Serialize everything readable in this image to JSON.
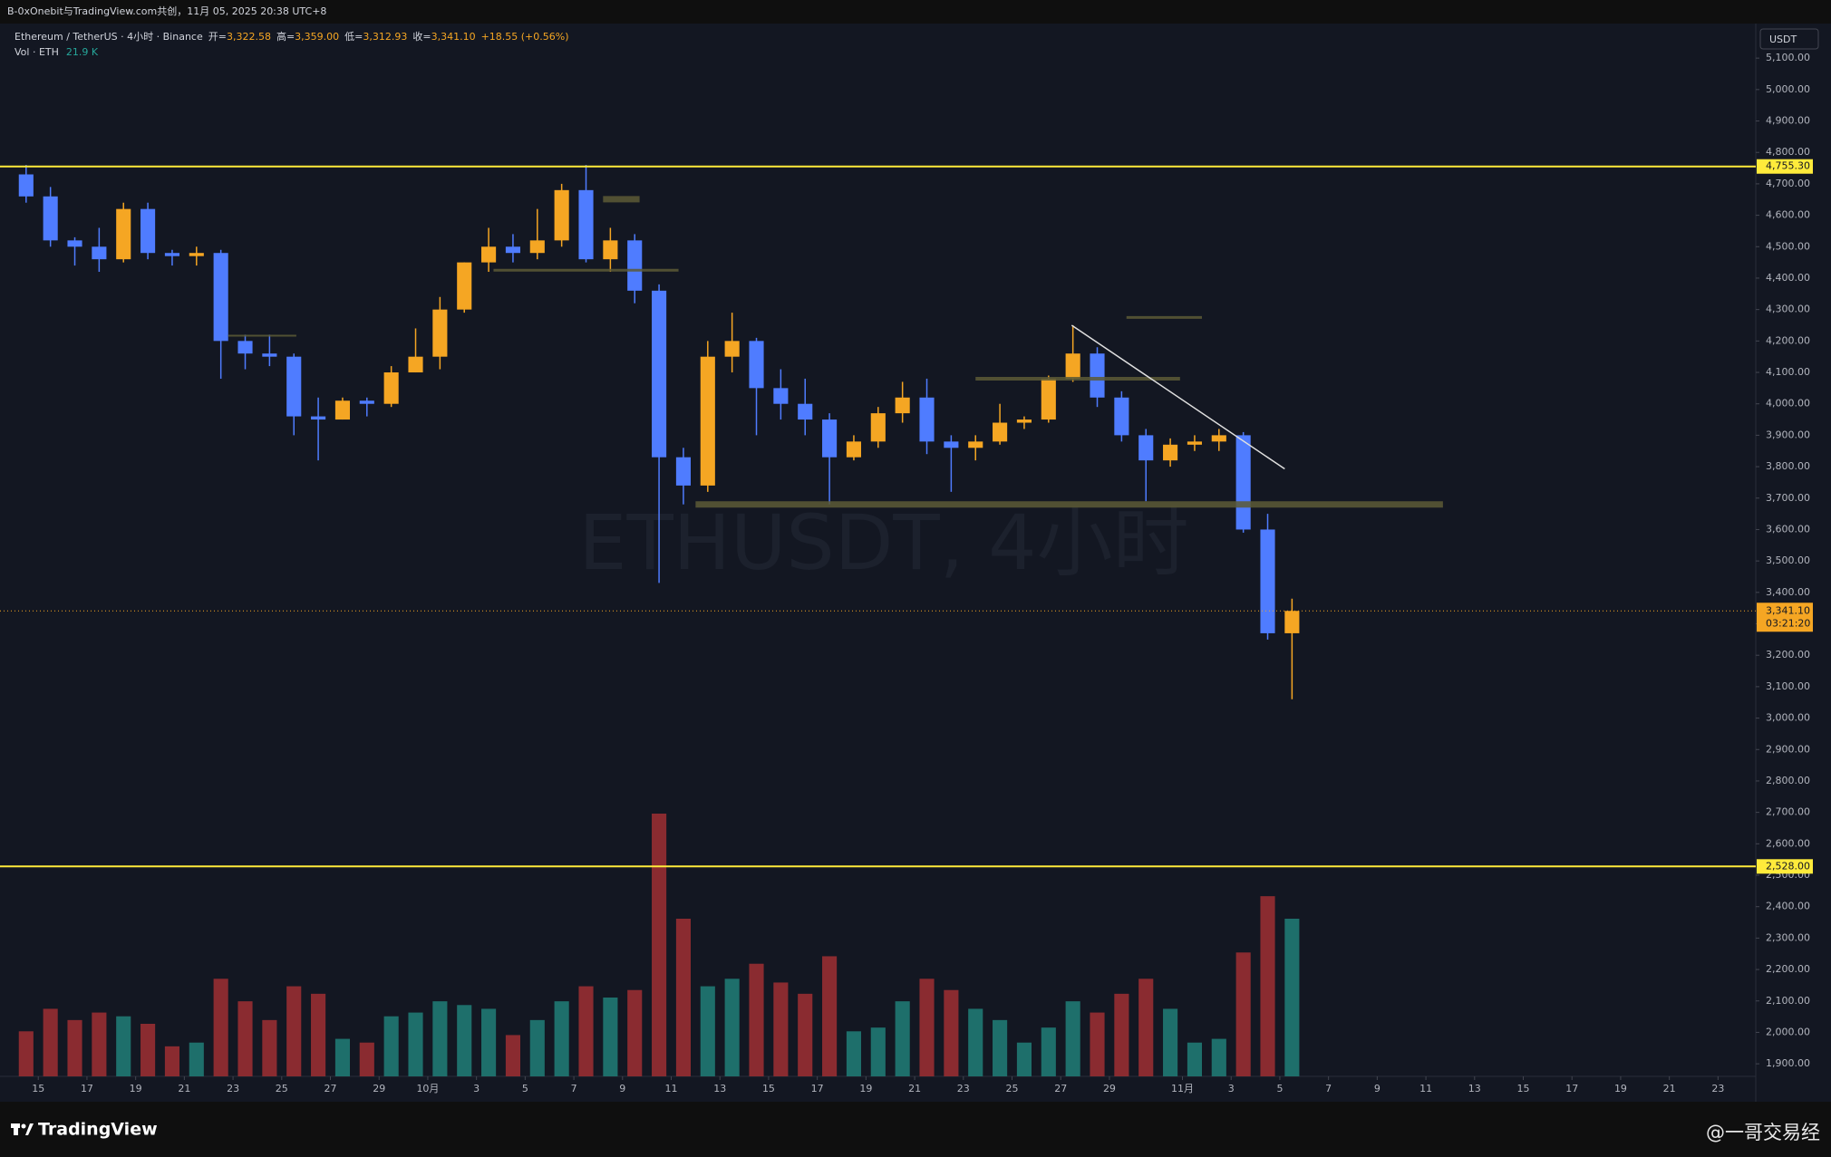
{
  "header": "B-0xOnebit与TradingView.com共创，11月 05, 2025 20:38 UTC+8",
  "legend": {
    "symbol": "Ethereum / TetherUS · 4小时 · Binance",
    "open_label": "开=",
    "open": "3,322.58",
    "high_label": "高=",
    "high": "3,359.00",
    "low_label": "低=",
    "low": "3,312.93",
    "close_label": "收=",
    "close": "3,341.10",
    "change": "+18.55 (+0.56%)",
    "volume_label": "Vol · ETH",
    "volume": "21.9 K"
  },
  "watermark": "ETHUSDT, 4小时",
  "currency": "USDT",
  "footer": {
    "brand": "TradingView",
    "credit": "@一哥交易经"
  },
  "chart_data": {
    "type": "candlestick",
    "up_color": "#f5a623",
    "down_color": "#4f7cff",
    "volume_up_color": "#1e6f6b",
    "volume_down_color": "#8a2b30",
    "x": [
      14.5,
      15.5,
      16.5,
      17.5,
      18.5,
      19.5,
      20.5,
      21.5,
      22.5,
      23.5,
      24.5,
      25.5,
      26.5,
      27.5,
      28.5,
      29.5,
      30.5,
      31.5,
      32.5,
      33.5,
      34.5,
      35.5,
      36.5,
      37.5,
      38.5,
      39.5,
      40.5,
      41.5,
      42.5,
      43.5,
      44.5,
      45.5,
      46.5,
      47.5,
      48.5,
      49.5,
      50.5,
      51.5,
      52.5,
      53.5,
      54.5,
      55.5,
      56.5,
      57.5,
      58.5,
      59.5,
      60.5,
      61.5,
      62.5,
      63.5,
      64.5,
      65.5,
      66.5
    ],
    "open": [
      4730,
      4660,
      4520,
      4500,
      4460,
      4620,
      4480,
      4470,
      4480,
      4200,
      4160,
      4150,
      3960,
      3950,
      4010,
      4000,
      4100,
      4150,
      4300,
      4450,
      4500,
      4480,
      4520,
      4680,
      4460,
      4520,
      4360,
      3830,
      3740,
      4150,
      4200,
      4050,
      4000,
      3950,
      3830,
      3880,
      3970,
      4020,
      3880,
      3860,
      3880,
      3940,
      3950,
      4080,
      4160,
      4020,
      3900,
      3820,
      3870,
      3880,
      3900,
      3600,
      3270
    ],
    "high": [
      4760,
      4690,
      4530,
      4560,
      4640,
      4640,
      4490,
      4500,
      4490,
      4220,
      4220,
      4160,
      4020,
      4020,
      4020,
      4120,
      4240,
      4340,
      4450,
      4560,
      4540,
      4620,
      4700,
      4760,
      4560,
      4540,
      4380,
      3860,
      4200,
      4290,
      4210,
      4110,
      4080,
      3970,
      3900,
      3990,
      4070,
      4080,
      3900,
      3900,
      4000,
      3960,
      4090,
      4250,
      4180,
      4040,
      3920,
      3890,
      3900,
      3920,
      3910,
      3650,
      3380
    ],
    "low": [
      4640,
      4500,
      4440,
      4420,
      4450,
      4460,
      4440,
      4440,
      4080,
      4110,
      4120,
      3900,
      3820,
      3950,
      3960,
      3990,
      4100,
      4110,
      4290,
      4420,
      4450,
      4460,
      4500,
      4450,
      4420,
      4320,
      3430,
      3680,
      3720,
      4100,
      3900,
      3950,
      3900,
      3680,
      3820,
      3860,
      3940,
      3840,
      3720,
      3820,
      3870,
      3920,
      3940,
      4070,
      3990,
      3880,
      3690,
      3800,
      3850,
      3850,
      3590,
      3250,
      3060
    ],
    "close": [
      4660,
      4520,
      4500,
      4460,
      4620,
      4480,
      4470,
      4480,
      4200,
      4160,
      4150,
      3960,
      3950,
      4010,
      4000,
      4100,
      4150,
      4300,
      4450,
      4500,
      4480,
      4520,
      4680,
      4460,
      4520,
      4360,
      3830,
      3740,
      4150,
      4200,
      4050,
      4000,
      3950,
      3830,
      3880,
      3970,
      4020,
      3880,
      3860,
      3880,
      3940,
      3950,
      4080,
      4160,
      4020,
      3900,
      3820,
      3870,
      3880,
      3900,
      3600,
      3270,
      3341.1
    ],
    "volume": [
      120,
      180,
      150,
      170,
      160,
      140,
      80,
      90,
      260,
      200,
      150,
      240,
      220,
      100,
      90,
      160,
      170,
      200,
      190,
      180,
      110,
      150,
      200,
      240,
      210,
      230,
      700,
      420,
      240,
      260,
      300,
      250,
      220,
      320,
      120,
      130,
      200,
      260,
      230,
      180,
      150,
      90,
      130,
      200,
      170,
      220,
      260,
      180,
      90,
      100,
      330,
      480,
      420
    ],
    "xlim": [
      13.8,
      85.55
    ],
    "ylim": [
      1860,
      5210
    ],
    "xticks": [
      15,
      17,
      19,
      21,
      23,
      25,
      27,
      29,
      {
        "value": 31,
        "label": "10月"
      },
      {
        "value": 33,
        "label": "3"
      },
      {
        "value": 35,
        "label": "5"
      },
      {
        "value": 37,
        "label": "7"
      },
      {
        "value": 39,
        "label": "9"
      },
      {
        "value": 41,
        "label": "11"
      },
      {
        "value": 43,
        "label": "13"
      },
      {
        "value": 45,
        "label": "15"
      },
      {
        "value": 47,
        "label": "17"
      },
      {
        "value": 49,
        "label": "19"
      },
      {
        "value": 51,
        "label": "21"
      },
      {
        "value": 53,
        "label": "23"
      },
      {
        "value": 55,
        "label": "25"
      },
      {
        "value": 57,
        "label": "27"
      },
      {
        "value": 59,
        "label": "29"
      },
      {
        "value": 62,
        "label": "11月"
      },
      {
        "value": 64,
        "label": "3"
      },
      {
        "value": 66,
        "label": "5"
      },
      {
        "value": 68,
        "label": "7"
      },
      {
        "value": 70,
        "label": "9"
      },
      {
        "value": 72,
        "label": "11"
      },
      {
        "value": 74,
        "label": "13"
      },
      {
        "value": 76,
        "label": "15"
      },
      {
        "value": 78,
        "label": "17"
      },
      {
        "value": 80,
        "label": "19"
      },
      {
        "value": 82,
        "label": "21"
      },
      {
        "value": 84,
        "label": "23"
      }
    ],
    "yticks": [
      {
        "value": 1900,
        "label": "1,900.00"
      },
      {
        "value": 2000,
        "label": "2,000.00"
      },
      {
        "value": 2100,
        "label": "2,100.00"
      },
      {
        "value": 2200,
        "label": "2,200.00"
      },
      {
        "value": 2300,
        "label": "2,300.00"
      },
      {
        "value": 2400,
        "label": "2,400.00"
      },
      {
        "value": 2500,
        "label": "2,500.00"
      },
      {
        "value": 2600,
        "label": "2,600.00"
      },
      {
        "value": 2700,
        "label": "2,700.00"
      },
      {
        "value": 2800,
        "label": "2,800.00"
      },
      {
        "value": 2900,
        "label": "2,900.00"
      },
      {
        "value": 3000,
        "label": "3,000.00"
      },
      {
        "value": 3100,
        "label": "3,100.00"
      },
      {
        "value": 3200,
        "label": "3,200.00"
      },
      {
        "value": 3300,
        "label": "3,300.00"
      },
      {
        "value": 3400,
        "label": "3,400.00"
      },
      {
        "value": 3500,
        "label": "3,500.00"
      },
      {
        "value": 3600,
        "label": "3,600.00"
      },
      {
        "value": 3700,
        "label": "3,700.00"
      },
      {
        "value": 3800,
        "label": "3,800.00"
      },
      {
        "value": 3900,
        "label": "3,900.00"
      },
      {
        "value": 4000,
        "label": "4,000.00"
      },
      {
        "value": 4100,
        "label": "4,100.00"
      },
      {
        "value": 4200,
        "label": "4,200.00"
      },
      {
        "value": 4300,
        "label": "4,300.00"
      },
      {
        "value": 4400,
        "label": "4,400.00"
      },
      {
        "value": 4500,
        "label": "4,500.00"
      },
      {
        "value": 4600,
        "label": "4,600.00"
      },
      {
        "value": 4700,
        "label": "4,700.00"
      },
      {
        "value": 4800,
        "label": "4,800.00"
      },
      {
        "value": 4900,
        "label": "4,900.00"
      },
      {
        "value": 5000,
        "label": "5,000.00"
      },
      {
        "value": 5100,
        "label": "5,100.00"
      }
    ],
    "grid": false,
    "hlines": [
      {
        "value": 4755.3,
        "label": "4,755.30",
        "color": "#ffeb3b"
      },
      {
        "value": 2528,
        "label": "2,528.00",
        "color": "#ffeb3b"
      }
    ],
    "last_price": {
      "value": 3341.1,
      "label": "3,341.10",
      "countdown": "03:21:20",
      "color": "#f5a623"
    },
    "zones": [
      {
        "value": 3680,
        "from": 42,
        "to": 72.7,
        "width": 7
      },
      {
        "value": 4425,
        "from": 33.7,
        "to": 41.3,
        "width": 3
      },
      {
        "value": 4217,
        "from": 22.8,
        "to": 25.6,
        "width": 2
      },
      {
        "value": 4080,
        "from": 53.5,
        "to": 61.9,
        "width": 4
      },
      {
        "value": 4275,
        "from": 59.7,
        "to": 62.8,
        "width": 3
      },
      {
        "value": 4651,
        "from": 38.2,
        "to": 39.7,
        "width": 7
      }
    ],
    "trendline": {
      "x": [
        57.45,
        66.2
      ],
      "y": [
        4250,
        3793
      ],
      "color": "#e0e0e0"
    }
  }
}
